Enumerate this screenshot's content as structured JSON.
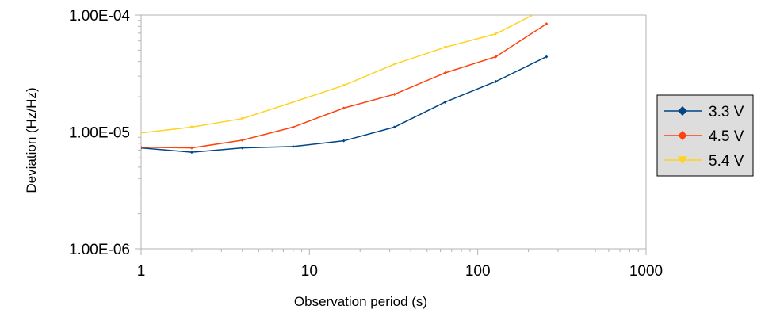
{
  "chart_data": {
    "type": "line",
    "title": "",
    "xlabel": "Observation period (s)",
    "ylabel": "Deviation (Hz/Hz)",
    "x_scale": "log",
    "y_scale": "log",
    "xlim": [
      1,
      1000
    ],
    "ylim": [
      1e-06,
      0.0001
    ],
    "x_ticks": [
      1,
      10,
      100,
      1000
    ],
    "x_tick_labels": [
      "1",
      "10",
      "100",
      "1000"
    ],
    "y_ticks": [
      1e-06,
      1e-05,
      0.0001
    ],
    "y_tick_labels": [
      "1.00E-06",
      "1.00E-05",
      "1.00E-04"
    ],
    "grid": "horizontal major",
    "legend_position": "right",
    "series": [
      {
        "name": "3.3 V",
        "color": "#004586",
        "marker": "diamond",
        "x": [
          1,
          2,
          4,
          8,
          16,
          32,
          64,
          128,
          256
        ],
        "y": [
          7.3e-06,
          6.7e-06,
          7.3e-06,
          7.5e-06,
          8.4e-06,
          1.1e-05,
          1.8e-05,
          2.7e-05,
          4.4e-05
        ]
      },
      {
        "name": "4.5 V",
        "color": "#ff420e",
        "marker": "diamond",
        "x": [
          1,
          2,
          4,
          8,
          16,
          32,
          64,
          128,
          256
        ],
        "y": [
          7.4e-06,
          7.3e-06,
          8.5e-06,
          1.1e-05,
          1.6e-05,
          2.1e-05,
          3.2e-05,
          4.4e-05,
          8.4e-05
        ]
      },
      {
        "name": "5.4 V",
        "color": "#ffd320",
        "marker": "triangle-down",
        "x": [
          1,
          2,
          4,
          8,
          16,
          32,
          64,
          128,
          256
        ],
        "y": [
          9.8e-06,
          1.1e-05,
          1.3e-05,
          1.8e-05,
          2.5e-05,
          3.8e-05,
          5.3e-05,
          6.9e-05,
          0.000115
        ]
      }
    ]
  }
}
